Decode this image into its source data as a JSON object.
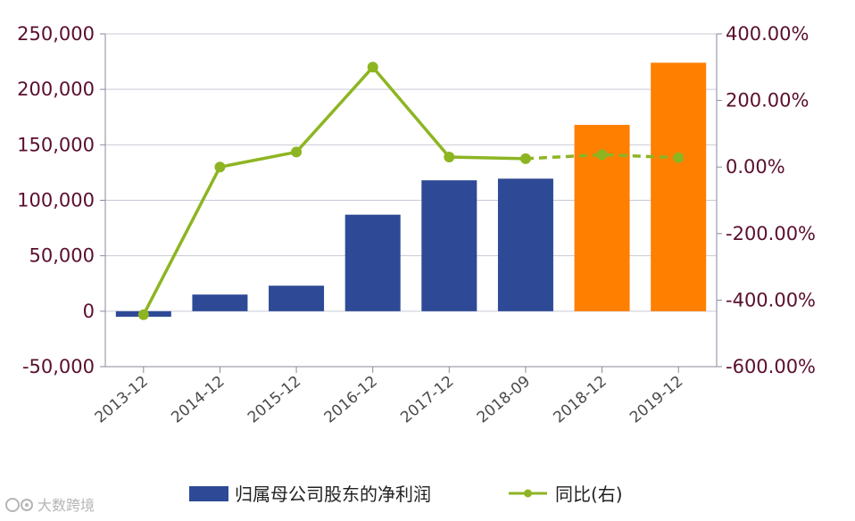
{
  "chart_data": {
    "type": "bar",
    "categories": [
      "2013-12",
      "2014-12",
      "2015-12",
      "2016-12",
      "2017-12",
      "2018-09",
      "2018-12",
      "2019-12"
    ],
    "series": [
      {
        "name": "归属母公司股东的净利润",
        "type": "bar",
        "axis": "left",
        "values": [
          -5000,
          15000,
          23000,
          87000,
          118000,
          119500,
          168000,
          224000
        ],
        "colors": [
          "#2e4a96",
          "#2e4a96",
          "#2e4a96",
          "#2e4a96",
          "#2e4a96",
          "#2e4a96",
          "#ff7f00",
          "#ff7f00"
        ]
      },
      {
        "name": "同比(右)",
        "type": "line",
        "axis": "right",
        "values": [
          -444,
          0,
          45,
          300,
          30,
          25,
          37,
          28
        ],
        "dashed_from_index": 5,
        "color": "#8db522"
      }
    ],
    "y_left": {
      "ylim": [
        -50000,
        250000
      ],
      "ticks": [
        250000,
        200000,
        150000,
        100000,
        50000,
        0,
        -50000
      ],
      "tick_labels": [
        "250,000",
        "200,000",
        "150,000",
        "100,000",
        "50,000",
        "0",
        "-50,000"
      ]
    },
    "y_right": {
      "ylim": [
        -600,
        400
      ],
      "ticks": [
        400,
        200,
        0,
        -200,
        -400,
        -600
      ],
      "tick_labels": [
        "400.00%",
        "200.00%",
        "0.00%",
        "-200.00%",
        "-400.00%",
        "-600.00%"
      ]
    },
    "title": "",
    "xlabel": "",
    "ylabel": "",
    "grid": true,
    "legend_position": "bottom",
    "colors": {
      "bar_actual": "#2e4a96",
      "bar_forecast": "#ff7f00",
      "line": "#8db522",
      "grid": "#c9c9d6",
      "axis_text": "#5a0f2e"
    }
  },
  "watermark": {
    "icon": "logo-icon",
    "text": "大数跨境"
  }
}
